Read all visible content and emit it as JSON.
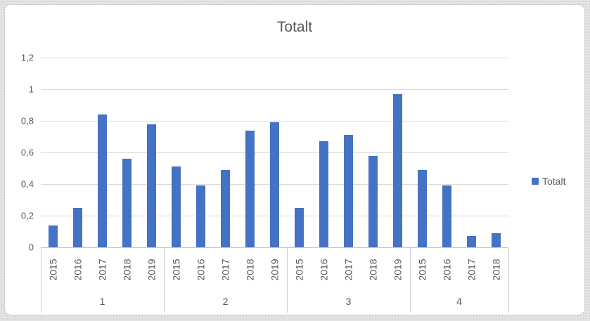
{
  "window": {
    "background_color": "#e4e4e4",
    "card_background": "#ffffff",
    "card_border_color": "#d2d2d2"
  },
  "chart_data": {
    "type": "bar",
    "title": "Totalt",
    "series_name": "Totalt",
    "bar_color": "#4472c4",
    "text_color": "#595959",
    "gridline_color": "#d9d9d9",
    "axis_line_color": "#c9c9c9",
    "grid": true,
    "ylim": [
      0,
      1.2
    ],
    "legend": {
      "label": "Totalt",
      "position": "right",
      "marker_color": "#4472c4"
    },
    "y_ticks": [
      {
        "label": "0",
        "value": 0
      },
      {
        "label": "0,2",
        "value": 0.2
      },
      {
        "label": "0,4",
        "value": 0.4
      },
      {
        "label": "0,6",
        "value": 0.6
      },
      {
        "label": "0,8",
        "value": 0.8
      },
      {
        "label": "1",
        "value": 1.0
      },
      {
        "label": "1,2",
        "value": 1.2
      }
    ],
    "groups": [
      {
        "label": "1",
        "categories": [
          "2015",
          "2016",
          "2017",
          "2018",
          "2019"
        ],
        "values": [
          0.14,
          0.25,
          0.84,
          0.56,
          0.78
        ]
      },
      {
        "label": "2",
        "categories": [
          "2015",
          "2016",
          "2017",
          "2018",
          "2019"
        ],
        "values": [
          0.51,
          0.39,
          0.49,
          0.74,
          0.79
        ]
      },
      {
        "label": "3",
        "categories": [
          "2015",
          "2016",
          "2017",
          "2018",
          "2019"
        ],
        "values": [
          0.25,
          0.67,
          0.71,
          0.58,
          0.97
        ]
      },
      {
        "label": "4",
        "categories": [
          "2015",
          "2016",
          "2017",
          "2018"
        ],
        "values": [
          0.49,
          0.39,
          0.07,
          0.09
        ]
      }
    ]
  }
}
